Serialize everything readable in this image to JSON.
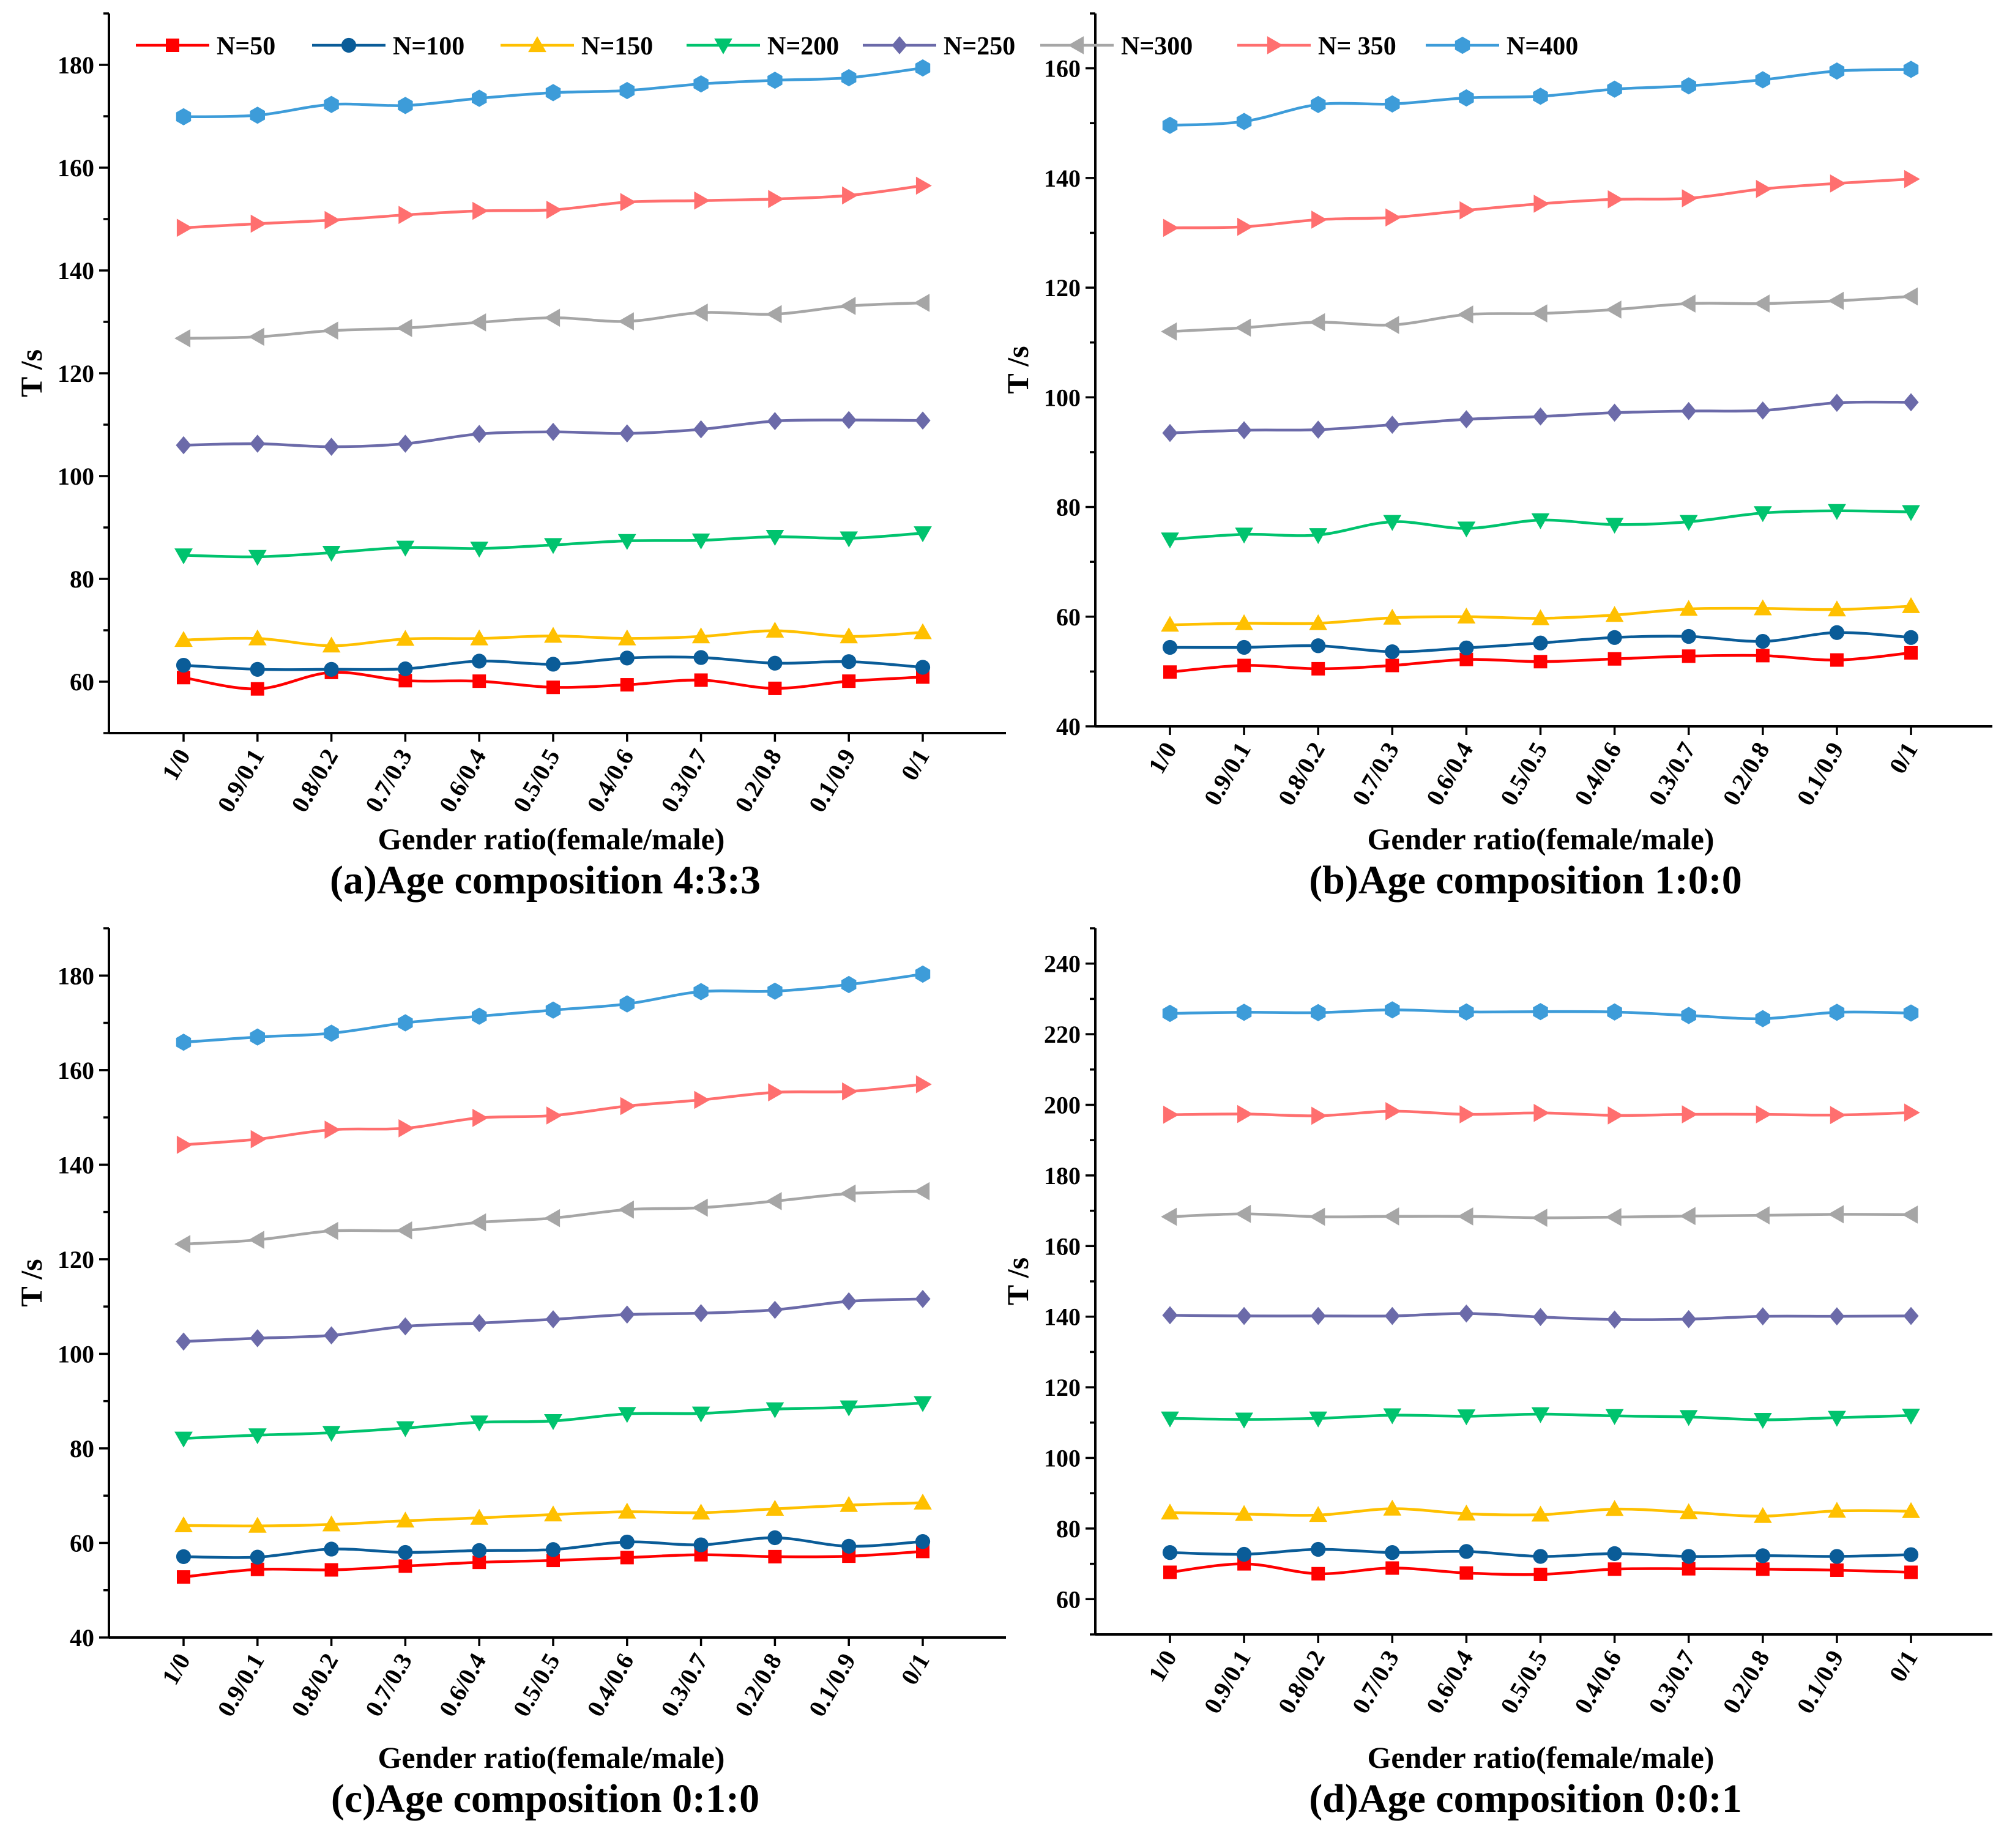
{
  "legend": [
    {
      "name": "N=50",
      "color": "#ff0000",
      "marker": "square"
    },
    {
      "name": "N=100",
      "color": "#0a5c98",
      "marker": "circle"
    },
    {
      "name": "N=150",
      "color": "#ffc000",
      "marker": "triangle-up"
    },
    {
      "name": "N=200",
      "color": "#00c36e",
      "marker": "triangle-down"
    },
    {
      "name": "N=250",
      "color": "#6b6aa9",
      "marker": "diamond"
    },
    {
      "name": "N=300",
      "color": "#a6a6a6",
      "marker": "triangle-left"
    },
    {
      "name": "N= 350",
      "color": "#ff6f6f",
      "marker": "triangle-right"
    },
    {
      "name": "N=400",
      "color": "#3d9cd9",
      "marker": "hexagon"
    }
  ],
  "chart_data": [
    {
      "type": "line",
      "caption": "(a)Age composition 4:3:3",
      "xlabel": "Gender ratio(female/male)",
      "ylabel": "T /s",
      "categories": [
        "1/0",
        "0.9/0.1",
        "0.8/0.2",
        "0.7/0.3",
        "0.6/0.4",
        "0.5/0.5",
        "0.4/0.6",
        "0.3/0.7",
        "0.2/0.8",
        "0.1/0.9",
        "0/1"
      ],
      "ylim": [
        50,
        190
      ],
      "yticks": [
        60,
        80,
        100,
        120,
        140,
        160,
        180
      ],
      "legend_position": "top",
      "series": [
        {
          "name": "N=50",
          "values": [
            60.8,
            58.6,
            61.8,
            60.2,
            60.1,
            58.9,
            59.4,
            60.3,
            58.7,
            60.1,
            60.9
          ]
        },
        {
          "name": "N=100",
          "values": [
            63.2,
            62.4,
            62.4,
            62.5,
            64.0,
            63.4,
            64.6,
            64.7,
            63.6,
            63.9,
            62.8
          ]
        },
        {
          "name": "N=150",
          "values": [
            68.1,
            68.4,
            67.0,
            68.3,
            68.4,
            68.9,
            68.4,
            68.8,
            69.9,
            68.8,
            69.6
          ]
        },
        {
          "name": "N=200",
          "values": [
            84.6,
            84.3,
            85.1,
            86.1,
            85.9,
            86.6,
            87.4,
            87.5,
            88.2,
            87.9,
            88.9
          ]
        },
        {
          "name": "N=250",
          "values": [
            106.0,
            106.3,
            105.7,
            106.3,
            108.2,
            108.6,
            108.3,
            109.1,
            110.7,
            110.9,
            110.8
          ]
        },
        {
          "name": "N=300",
          "values": [
            126.8,
            127.1,
            128.3,
            128.8,
            129.9,
            130.8,
            130.1,
            131.8,
            131.5,
            133.1,
            133.7
          ]
        },
        {
          "name": "N= 350",
          "values": [
            148.3,
            149.1,
            149.8,
            150.8,
            151.6,
            151.8,
            153.3,
            153.6,
            153.9,
            154.6,
            156.5
          ]
        },
        {
          "name": "N=400",
          "values": [
            169.9,
            170.2,
            172.3,
            172.1,
            173.5,
            174.6,
            175.0,
            176.3,
            177.0,
            177.5,
            179.4
          ]
        }
      ]
    },
    {
      "type": "line",
      "caption": "(b)Age composition 1:0:0",
      "xlabel": "Gender ratio(female/male)",
      "ylabel": "T /s",
      "categories": [
        "1/0",
        "0.9/0.1",
        "0.8/0.2",
        "0.7/0.3",
        "0.6/0.4",
        "0.5/0.5",
        "0.4/0.6",
        "0.3/0.7",
        "0.2/0.8",
        "0.1/0.9",
        "0/1"
      ],
      "ylim": [
        40,
        170
      ],
      "yticks": [
        40,
        60,
        80,
        100,
        120,
        140,
        160
      ],
      "series": [
        {
          "name": "N=50",
          "values": [
            49.9,
            51.1,
            50.5,
            51.1,
            52.2,
            51.8,
            52.3,
            52.8,
            52.9,
            52.1,
            53.4
          ]
        },
        {
          "name": "N=100",
          "values": [
            54.4,
            54.4,
            54.7,
            53.6,
            54.3,
            55.2,
            56.2,
            56.4,
            55.5,
            57.1,
            56.2
          ]
        },
        {
          "name": "N=150",
          "values": [
            58.5,
            58.8,
            58.8,
            59.8,
            60.0,
            59.7,
            60.3,
            61.4,
            61.5,
            61.3,
            61.9
          ]
        },
        {
          "name": "N=200",
          "values": [
            74.1,
            75.0,
            74.9,
            77.3,
            76.1,
            77.6,
            76.8,
            77.3,
            78.9,
            79.3,
            79.1
          ]
        },
        {
          "name": "N=250",
          "values": [
            93.5,
            94.0,
            94.1,
            95.0,
            96.0,
            96.5,
            97.2,
            97.5,
            97.6,
            99.0,
            99.1
          ]
        },
        {
          "name": "N=300",
          "values": [
            112.0,
            112.7,
            113.7,
            113.2,
            115.1,
            115.3,
            116.0,
            117.1,
            117.1,
            117.6,
            118.4
          ]
        },
        {
          "name": "N= 350",
          "values": [
            130.9,
            131.1,
            132.4,
            132.8,
            134.1,
            135.3,
            136.1,
            136.3,
            138.0,
            139.0,
            139.8
          ]
        },
        {
          "name": "N=400",
          "values": [
            149.6,
            150.3,
            153.4,
            153.5,
            154.6,
            154.9,
            156.2,
            156.8,
            157.9,
            159.5,
            159.8
          ]
        }
      ]
    },
    {
      "type": "line",
      "caption": "(c)Age composition 0:1:0",
      "xlabel": "Gender ratio(female/male)",
      "ylabel": "T /s",
      "categories": [
        "1/0",
        "0.9/0.1",
        "0.8/0.2",
        "0.7/0.3",
        "0.6/0.4",
        "0.5/0.5",
        "0.4/0.6",
        "0.3/0.7",
        "0.2/0.8",
        "0.1/0.9",
        "0/1"
      ],
      "ylim": [
        40,
        190
      ],
      "yticks": [
        40,
        60,
        80,
        100,
        120,
        140,
        160,
        180
      ],
      "series": [
        {
          "name": "N=50",
          "values": [
            52.8,
            54.4,
            54.3,
            55.1,
            55.9,
            56.3,
            56.9,
            57.5,
            57.1,
            57.2,
            58.2
          ]
        },
        {
          "name": "N=100",
          "values": [
            57.1,
            57.0,
            58.7,
            58.0,
            58.4,
            58.6,
            60.2,
            59.6,
            61.1,
            59.3,
            60.3
          ]
        },
        {
          "name": "N=150",
          "values": [
            63.7,
            63.6,
            63.9,
            64.7,
            65.3,
            66.0,
            66.6,
            66.4,
            67.2,
            68.0,
            68.5
          ]
        },
        {
          "name": "N=200",
          "values": [
            82.1,
            82.8,
            83.3,
            84.3,
            85.5,
            85.8,
            87.3,
            87.4,
            88.3,
            88.7,
            89.6
          ]
        },
        {
          "name": "N=250",
          "values": [
            102.6,
            103.3,
            103.9,
            105.8,
            106.5,
            107.3,
            108.3,
            108.6,
            109.3,
            111.1,
            111.6
          ]
        },
        {
          "name": "N=300",
          "values": [
            123.2,
            124.1,
            126.0,
            126.1,
            127.8,
            128.7,
            130.5,
            130.9,
            132.3,
            133.9,
            134.4
          ]
        },
        {
          "name": "N= 350",
          "values": [
            144.2,
            145.4,
            147.4,
            147.7,
            149.9,
            150.4,
            152.4,
            153.7,
            155.3,
            155.5,
            157.0
          ]
        },
        {
          "name": "N=400",
          "values": [
            165.9,
            167.0,
            167.8,
            170.0,
            171.4,
            172.7,
            174.0,
            176.6,
            176.7,
            178.1,
            180.3
          ]
        }
      ]
    },
    {
      "type": "line",
      "caption": "(d)Age composition 0:0:1",
      "xlabel": "Gender ratio(female/male)",
      "ylabel": "T /s",
      "categories": [
        "1/0",
        "0.9/0.1",
        "0.8/0.2",
        "0.7/0.3",
        "0.6/0.4",
        "0.5/0.5",
        "0.4/0.6",
        "0.3/0.7",
        "0.2/0.8",
        "0.1/0.9",
        "0/1"
      ],
      "ylim": [
        50,
        250
      ],
      "yticks": [
        60,
        80,
        100,
        120,
        140,
        160,
        180,
        200,
        220,
        240
      ],
      "series": [
        {
          "name": "N=50",
          "values": [
            67.6,
            70.0,
            67.2,
            68.8,
            67.4,
            67.0,
            68.5,
            68.6,
            68.5,
            68.2,
            67.6
          ]
        },
        {
          "name": "N=100",
          "values": [
            73.2,
            72.7,
            74.1,
            73.2,
            73.5,
            72.1,
            72.9,
            72.1,
            72.3,
            72.1,
            72.6
          ]
        },
        {
          "name": "N=150",
          "values": [
            84.5,
            84.1,
            83.8,
            85.6,
            84.2,
            83.9,
            85.5,
            84.6,
            83.5,
            85.0,
            84.9
          ]
        },
        {
          "name": "N=200",
          "values": [
            111.2,
            110.9,
            111.2,
            112.1,
            111.8,
            112.4,
            111.9,
            111.6,
            110.8,
            111.4,
            112.0
          ]
        },
        {
          "name": "N=250",
          "values": [
            140.4,
            140.2,
            140.2,
            140.2,
            140.9,
            139.9,
            139.2,
            139.3,
            140.1,
            140.1,
            140.2
          ]
        },
        {
          "name": "N=300",
          "values": [
            168.3,
            169.1,
            168.3,
            168.4,
            168.4,
            168.0,
            168.2,
            168.5,
            168.7,
            169.0,
            168.9
          ]
        },
        {
          "name": "N= 350",
          "values": [
            197.2,
            197.4,
            196.9,
            198.2,
            197.3,
            197.7,
            197.0,
            197.3,
            197.3,
            197.1,
            197.8
          ]
        },
        {
          "name": "N=400",
          "values": [
            225.9,
            226.2,
            226.1,
            226.9,
            226.3,
            226.4,
            226.3,
            225.3,
            224.4,
            226.2,
            226.0
          ]
        }
      ]
    }
  ]
}
